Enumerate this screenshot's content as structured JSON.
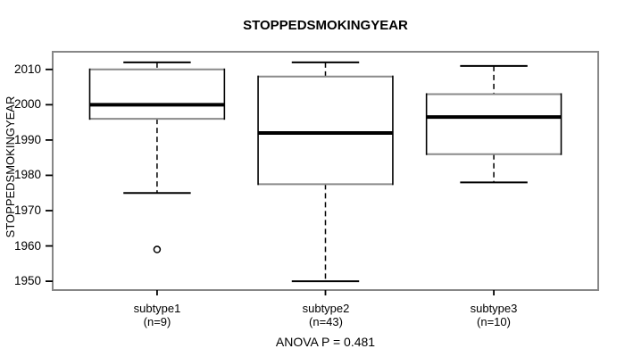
{
  "figure": {
    "title": "STOPPEDSMOKINGYEAR",
    "y_axis_label": "STOPPEDSMOKINGYEAR",
    "annotation": "ANOVA P = 0.481"
  },
  "chart_data": {
    "type": "boxplot",
    "title": "STOPPEDSMOKINGYEAR",
    "xlabel": "",
    "ylabel": "STOPPEDSMOKINGYEAR",
    "ylim": [
      1947.5,
      2015
    ],
    "yticks": [
      1950,
      1960,
      1970,
      1980,
      1990,
      2000,
      2010
    ],
    "grid": false,
    "legend": "none",
    "annotation": "ANOVA P = 0.481",
    "categories": [
      "subtype1",
      "subtype2",
      "subtype3"
    ],
    "category_sublabels": [
      "(n=9)",
      "(n=43)",
      "(n=10)"
    ],
    "series": [
      {
        "name": "subtype1",
        "n": 9,
        "whisker_low": 1975,
        "q1": 1996,
        "median": 2000,
        "q3": 2010,
        "whisker_high": 2012,
        "outliers": [
          1959
        ]
      },
      {
        "name": "subtype2",
        "n": 43,
        "whisker_low": 1950,
        "q1": 1977.5,
        "median": 1992,
        "q3": 2008,
        "whisker_high": 2012,
        "outliers": []
      },
      {
        "name": "subtype3",
        "n": 10,
        "whisker_low": 1978,
        "q1": 1986,
        "median": 1996.5,
        "q3": 2003,
        "whisker_high": 2011,
        "outliers": []
      }
    ],
    "colors": {
      "frame": "#878787",
      "line": "#000000",
      "box_horizontal_edge": "#8a8a8a",
      "box_fill": "#ffffff",
      "background": "#ffffff",
      "text": "#000000"
    }
  }
}
